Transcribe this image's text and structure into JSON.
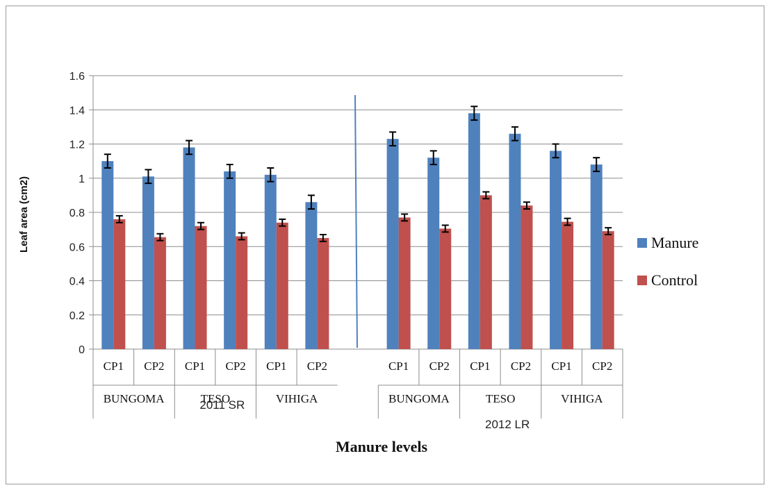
{
  "chart_data": {
    "type": "bar",
    "xlabel": "Manure levels",
    "ylabel": "Leaf area (cm2)",
    "ylim": [
      0,
      1.6
    ],
    "yticks": [
      "0",
      "0.2",
      "0.4",
      "0.6",
      "0.8",
      "1",
      "1.2",
      "1.4",
      "1.6"
    ],
    "grid": true,
    "legend_position": "right",
    "categories": [
      "CP1",
      "CP2",
      "CP1",
      "CP2",
      "CP1",
      "CP2",
      "",
      "CP1",
      "CP2",
      "CP1",
      "CP2",
      "CP1",
      "CP2"
    ],
    "location_labels": [
      "BUNGOMA",
      "TESO",
      "VIHIGA",
      "BUNGOMA",
      "TESO",
      "VIHIGA"
    ],
    "season_labels": [
      "2011 SR",
      "2012 LR"
    ],
    "series": [
      {
        "name": "Manure",
        "color": "#4f81bd",
        "values": [
          1.1,
          1.01,
          1.18,
          1.04,
          1.02,
          0.86,
          null,
          1.23,
          1.12,
          1.38,
          1.26,
          1.16,
          1.08
        ],
        "errors": [
          0.04,
          0.04,
          0.04,
          0.04,
          0.04,
          0.04,
          null,
          0.04,
          0.04,
          0.04,
          0.04,
          0.04,
          0.04
        ]
      },
      {
        "name": "Control",
        "color": "#c0504d",
        "values": [
          0.76,
          0.655,
          0.72,
          0.66,
          0.74,
          0.65,
          null,
          0.77,
          0.705,
          0.9,
          0.84,
          0.745,
          0.69
        ],
        "errors": [
          0.02,
          0.02,
          0.02,
          0.02,
          0.02,
          0.02,
          null,
          0.02,
          0.02,
          0.02,
          0.02,
          0.02,
          0.02
        ]
      }
    ]
  }
}
